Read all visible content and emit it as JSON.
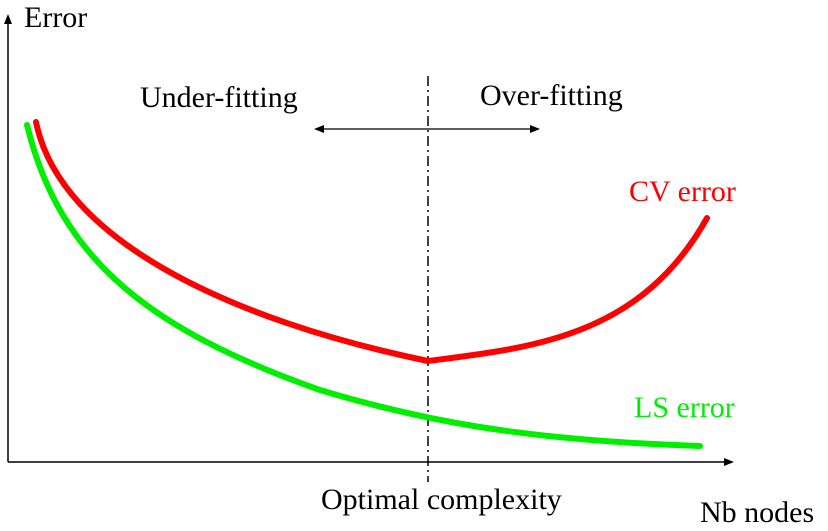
{
  "y_axis_label": "Error",
  "x_axis_label": "Nb nodes",
  "left_region_label": "Under-fitting",
  "right_region_label": "Over-fitting",
  "marker_label": "Optimal complexity",
  "cv_curve": {
    "label": "CV error",
    "color": "#ff0000"
  },
  "ls_curve": {
    "label": "LS error",
    "color": "#00ee00"
  },
  "axis_color": "#000000"
}
